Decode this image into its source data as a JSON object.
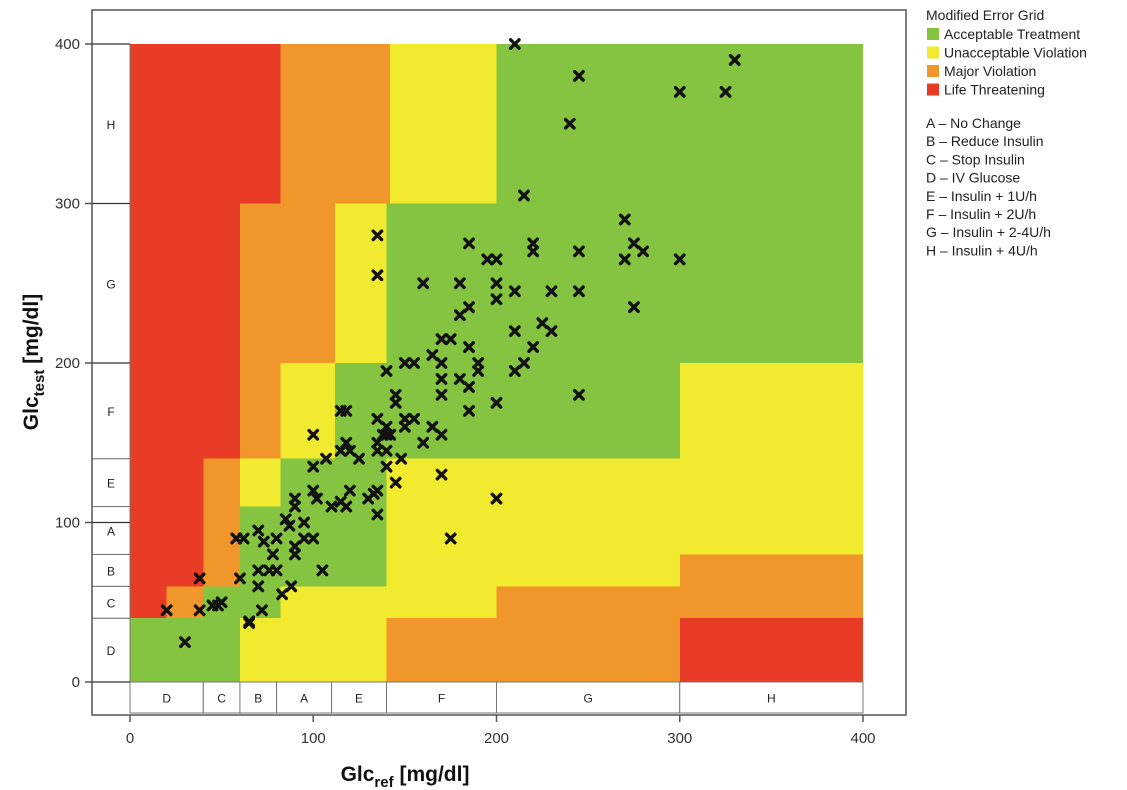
{
  "chart_data": {
    "type": "scatter",
    "title": "",
    "xlabel": {
      "main": "Glc",
      "sub": "ref",
      "unit": "[mg/dl]"
    },
    "ylabel": {
      "main": "Glc",
      "sub": "test",
      "unit": "[mg/dl]"
    },
    "xlim": [
      -20,
      420
    ],
    "ylim": [
      -20,
      420
    ],
    "x_ticks": [
      0,
      100,
      200,
      300,
      400
    ],
    "y_ticks": [
      0,
      100,
      200,
      300,
      400
    ],
    "grid": false,
    "legend": {
      "placement": "right",
      "title": "Modified Error Grid",
      "zones": [
        {
          "key": "acceptable",
          "label": "Acceptable Treatment",
          "color": "#85c441"
        },
        {
          "key": "unacceptable",
          "label": "Unacceptable Violation",
          "color": "#f2ea2e"
        },
        {
          "key": "major",
          "label": "Major Violation",
          "color": "#f1962a"
        },
        {
          "key": "life",
          "label": "Life Threatening",
          "color": "#e93c26"
        }
      ],
      "codes": [
        "A – No Change",
        "B – Reduce Insulin",
        "C – Stop Insulin",
        "D – IV Glucose",
        "E – Insulin + 1U/h",
        "F – Insulin + 2U/h",
        "G – Insulin + 2-4U/h",
        "H – Insulin + 4U/h"
      ]
    },
    "treatment_bands": [
      {
        "label": "D",
        "from": 0,
        "to": 40
      },
      {
        "label": "C",
        "from": 40,
        "to": 60
      },
      {
        "label": "B",
        "from": 60,
        "to": 80
      },
      {
        "label": "A",
        "from": 80,
        "to": 110
      },
      {
        "label": "E",
        "from": 110,
        "to": 140
      },
      {
        "label": "F",
        "from": 140,
        "to": 200
      },
      {
        "label": "G",
        "from": 200,
        "to": 300
      },
      {
        "label": "H",
        "from": 300,
        "to": 400
      }
    ],
    "zones": [
      {
        "zone": "unacceptable",
        "x": [
          0,
          400
        ],
        "y": [
          0,
          400
        ]
      },
      {
        "zone": "life",
        "x": [
          0,
          40
        ],
        "y": [
          40,
          400
        ]
      },
      {
        "zone": "life",
        "x": [
          40,
          82
        ],
        "y": [
          60,
          400
        ]
      },
      {
        "zone": "major",
        "x": [
          20,
          40
        ],
        "y": [
          40,
          60
        ]
      },
      {
        "zone": "major",
        "x": [
          40,
          60
        ],
        "y": [
          60,
          140
        ]
      },
      {
        "zone": "major",
        "x": [
          60,
          82
        ],
        "y": [
          140,
          300
        ]
      },
      {
        "zone": "major",
        "x": [
          82,
          142
        ],
        "y": [
          300,
          400
        ]
      },
      {
        "zone": "major",
        "x": [
          82,
          112
        ],
        "y": [
          200,
          300
        ]
      },
      {
        "zone": "unacceptable",
        "x": [
          112,
          142
        ],
        "y": [
          200,
          300
        ]
      },
      {
        "zone": "unacceptable",
        "x": [
          142,
          200
        ],
        "y": [
          300,
          400
        ]
      },
      {
        "zone": "unacceptable",
        "x": [
          82,
          112
        ],
        "y": [
          140,
          200
        ]
      },
      {
        "zone": "unacceptable",
        "x": [
          60,
          82
        ],
        "y": [
          110,
          140
        ]
      },
      {
        "zone": "acceptable",
        "x": [
          0,
          60
        ],
        "y": [
          0,
          40
        ]
      },
      {
        "zone": "acceptable",
        "x": [
          40,
          60
        ],
        "y": [
          40,
          60
        ]
      },
      {
        "zone": "acceptable",
        "x": [
          60,
          82
        ],
        "y": [
          40,
          110
        ]
      },
      {
        "zone": "acceptable",
        "x": [
          82,
          140
        ],
        "y": [
          60,
          80
        ]
      },
      {
        "zone": "acceptable",
        "x": [
          82,
          112
        ],
        "y": [
          80,
          140
        ]
      },
      {
        "zone": "acceptable",
        "x": [
          112,
          140
        ],
        "y": [
          80,
          200
        ]
      },
      {
        "zone": "acceptable",
        "x": [
          140,
          200
        ],
        "y": [
          140,
          300
        ]
      },
      {
        "zone": "acceptable",
        "x": [
          200,
          300
        ],
        "y": [
          140,
          200
        ]
      },
      {
        "zone": "acceptable",
        "x": [
          200,
          400
        ],
        "y": [
          200,
          400
        ]
      },
      {
        "zone": "major",
        "x": [
          140,
          300
        ],
        "y": [
          0,
          40
        ]
      },
      {
        "zone": "major",
        "x": [
          200,
          300
        ],
        "y": [
          40,
          60
        ]
      },
      {
        "zone": "major",
        "x": [
          300,
          400
        ],
        "y": [
          40,
          80
        ]
      },
      {
        "zone": "life",
        "x": [
          300,
          400
        ],
        "y": [
          0,
          40
        ]
      }
    ],
    "points": [
      [
        20,
        45
      ],
      [
        30,
        25
      ],
      [
        38,
        65
      ],
      [
        38,
        45
      ],
      [
        45,
        48
      ],
      [
        50,
        50
      ],
      [
        48,
        48
      ],
      [
        58,
        90
      ],
      [
        60,
        65
      ],
      [
        62,
        90
      ],
      [
        65,
        37
      ],
      [
        65,
        38
      ],
      [
        70,
        95
      ],
      [
        70,
        60
      ],
      [
        72,
        45
      ],
      [
        70,
        70
      ],
      [
        73,
        88
      ],
      [
        76,
        70
      ],
      [
        78,
        80
      ],
      [
        80,
        70
      ],
      [
        80,
        90
      ],
      [
        83,
        55
      ],
      [
        85,
        102
      ],
      [
        87,
        98
      ],
      [
        88,
        60
      ],
      [
        90,
        110
      ],
      [
        90,
        80
      ],
      [
        90,
        115
      ],
      [
        90,
        85
      ],
      [
        95,
        100
      ],
      [
        95,
        90
      ],
      [
        100,
        135
      ],
      [
        100,
        120
      ],
      [
        100,
        90
      ],
      [
        100,
        155
      ],
      [
        102,
        115
      ],
      [
        105,
        70
      ],
      [
        107,
        140
      ],
      [
        110,
        110
      ],
      [
        115,
        170
      ],
      [
        115,
        145
      ],
      [
        115,
        113
      ],
      [
        118,
        170
      ],
      [
        118,
        150
      ],
      [
        120,
        145
      ],
      [
        120,
        120
      ],
      [
        118,
        110
      ],
      [
        125,
        140
      ],
      [
        130,
        115
      ],
      [
        133,
        118
      ],
      [
        135,
        165
      ],
      [
        135,
        280
      ],
      [
        135,
        255
      ],
      [
        135,
        150
      ],
      [
        135,
        145
      ],
      [
        135,
        105
      ],
      [
        135,
        120
      ],
      [
        138,
        155
      ],
      [
        140,
        135
      ],
      [
        140,
        145
      ],
      [
        140,
        160
      ],
      [
        140,
        155
      ],
      [
        140,
        195
      ],
      [
        142,
        155
      ],
      [
        145,
        180
      ],
      [
        145,
        175
      ],
      [
        145,
        125
      ],
      [
        148,
        140
      ],
      [
        150,
        160
      ],
      [
        150,
        200
      ],
      [
        150,
        165
      ],
      [
        155,
        200
      ],
      [
        155,
        165
      ],
      [
        160,
        150
      ],
      [
        160,
        250
      ],
      [
        165,
        205
      ],
      [
        165,
        160
      ],
      [
        170,
        200
      ],
      [
        170,
        215
      ],
      [
        170,
        190
      ],
      [
        170,
        180
      ],
      [
        170,
        155
      ],
      [
        170,
        130
      ],
      [
        175,
        215
      ],
      [
        175,
        90
      ],
      [
        180,
        250
      ],
      [
        180,
        230
      ],
      [
        180,
        190
      ],
      [
        185,
        275
      ],
      [
        185,
        235
      ],
      [
        185,
        210
      ],
      [
        185,
        185
      ],
      [
        185,
        170
      ],
      [
        190,
        200
      ],
      [
        190,
        195
      ],
      [
        195,
        265
      ],
      [
        200,
        265
      ],
      [
        200,
        250
      ],
      [
        200,
        240
      ],
      [
        200,
        175
      ],
      [
        200,
        115
      ],
      [
        210,
        400
      ],
      [
        210,
        245
      ],
      [
        210,
        220
      ],
      [
        210,
        195
      ],
      [
        215,
        305
      ],
      [
        215,
        200
      ],
      [
        220,
        275
      ],
      [
        220,
        270
      ],
      [
        220,
        210
      ],
      [
        225,
        225
      ],
      [
        230,
        245
      ],
      [
        230,
        220
      ],
      [
        240,
        350
      ],
      [
        245,
        380
      ],
      [
        245,
        270
      ],
      [
        245,
        245
      ],
      [
        245,
        180
      ],
      [
        270,
        290
      ],
      [
        270,
        265
      ],
      [
        275,
        275
      ],
      [
        275,
        235
      ],
      [
        280,
        270
      ],
      [
        300,
        370
      ],
      [
        300,
        265
      ],
      [
        325,
        370
      ],
      [
        330,
        390
      ]
    ]
  }
}
